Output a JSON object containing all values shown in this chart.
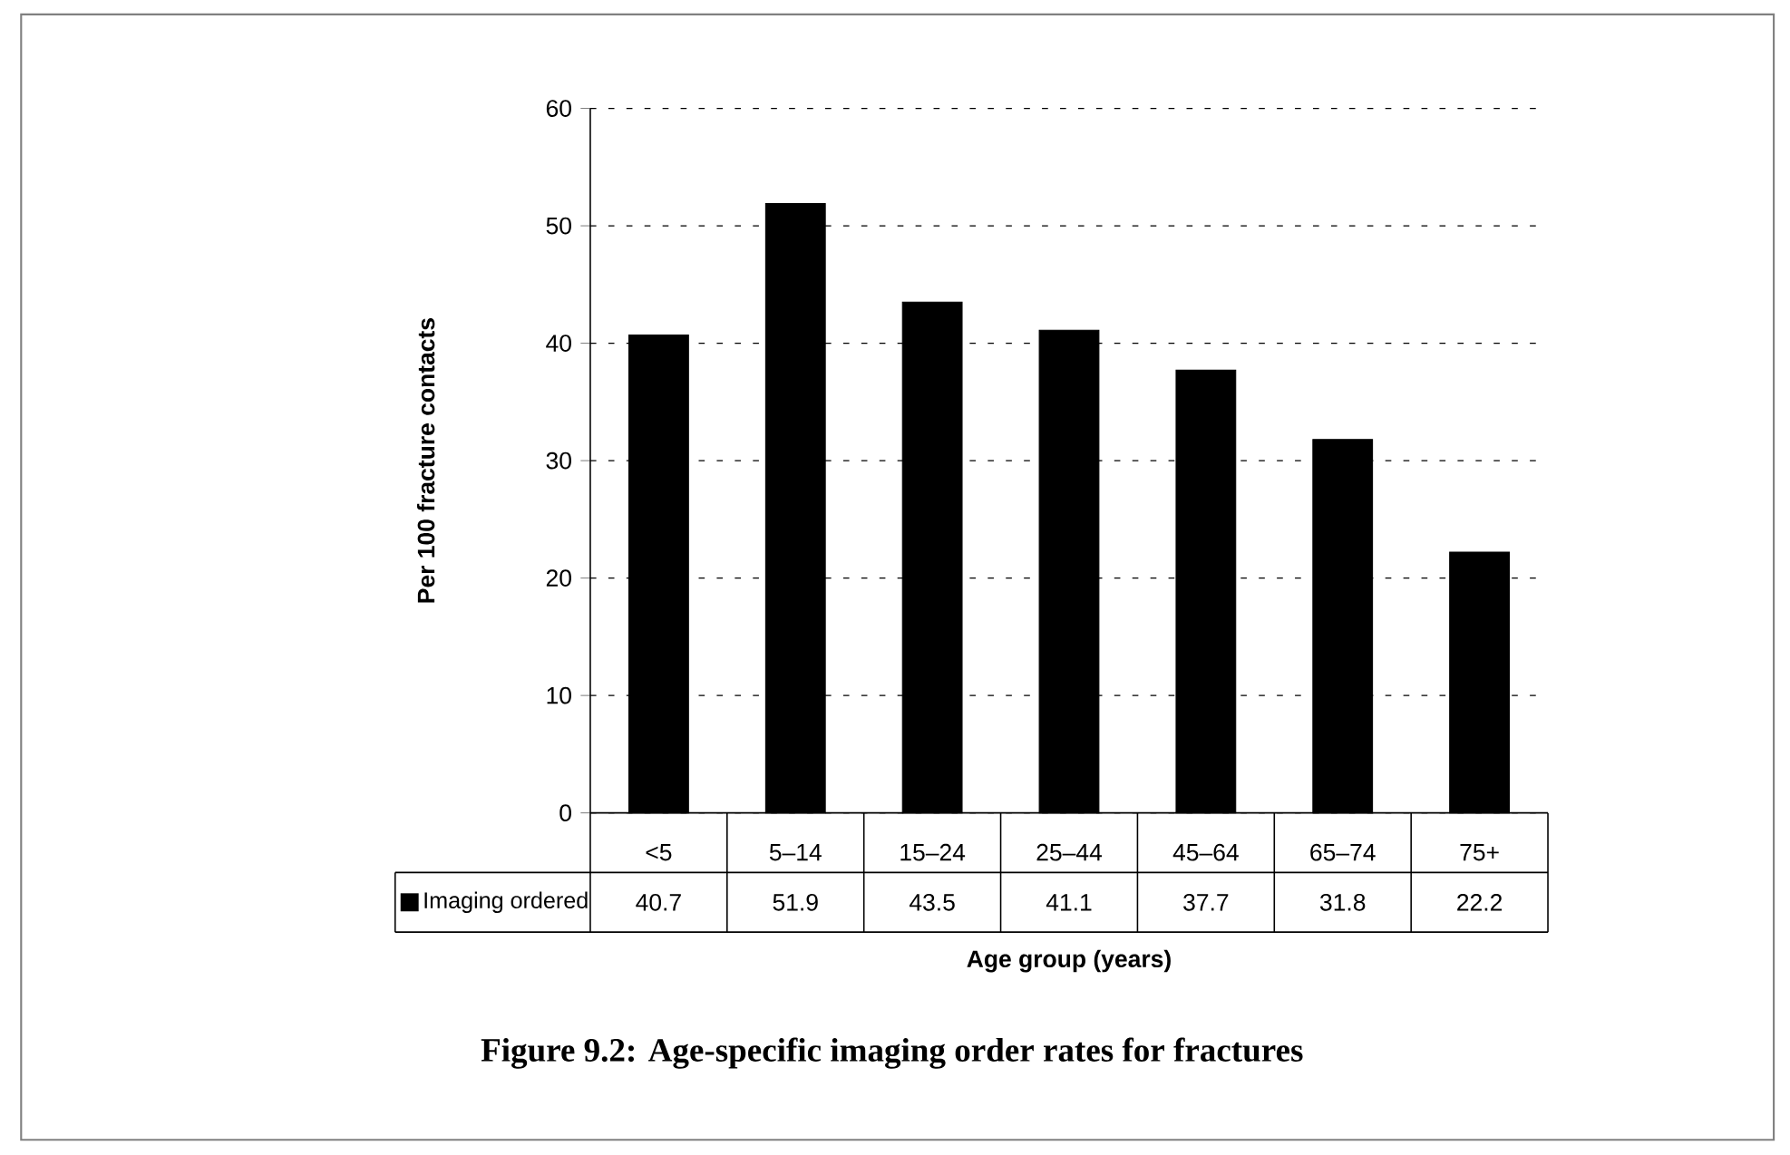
{
  "chart_data": {
    "type": "bar",
    "title": "Figure 9.2: Age-specific imaging order rates for fractures",
    "xlabel": "Age group (years)",
    "ylabel": "Per 100 fracture contacts",
    "categories": [
      "<5",
      "5–14",
      "15–24",
      "25–44",
      "45–64",
      "65–74",
      "75+"
    ],
    "series": [
      {
        "name": "Imaging ordered",
        "color": "#000000",
        "values": [
          40.7,
          51.9,
          43.5,
          41.1,
          37.7,
          31.8,
          22.2
        ]
      }
    ],
    "ylim": [
      0,
      60
    ],
    "yticks": [
      0,
      10,
      20,
      30,
      40,
      50,
      60
    ],
    "grid": "y",
    "legend": "bottom left",
    "data_labels": true
  }
}
